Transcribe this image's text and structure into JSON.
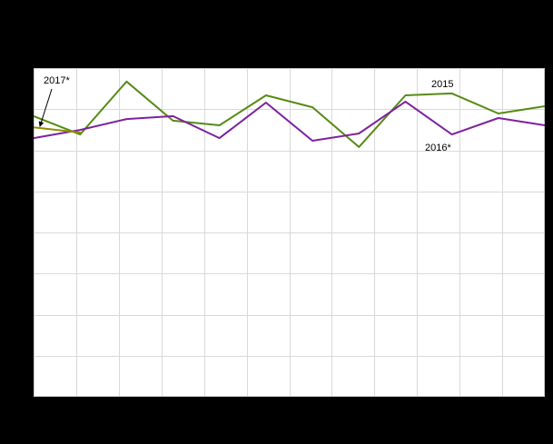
{
  "page": {
    "background_color": "#000000",
    "plot_background_color": "#ffffff"
  },
  "chart_data": {
    "type": "line",
    "x": [
      1,
      2,
      3,
      4,
      5,
      6,
      7,
      8,
      9,
      10,
      11,
      12
    ],
    "ylim": [
      0,
      100
    ],
    "grid": {
      "on": true,
      "cols": 12,
      "rows": 8,
      "color": "#d9d9d9"
    },
    "legend_position": "inline-annotations",
    "series": [
      {
        "name": "2015",
        "color": "#568b14",
        "values": [
          85.4,
          79.8,
          95.9,
          84.0,
          82.6,
          91.7,
          88.1,
          76.0,
          91.7,
          92.3,
          86.2,
          88.4
        ]
      },
      {
        "name": "2016*",
        "color": "#7d219e",
        "values": [
          78.7,
          81.2,
          84.5,
          85.4,
          78.7,
          89.5,
          77.9,
          80.1,
          89.8,
          79.8,
          84.8,
          82.6
        ]
      },
      {
        "name": "2017*",
        "color": "#8f8f00",
        "values": [
          82.0,
          80.4
        ]
      }
    ],
    "annotations": [
      {
        "text": "2017*",
        "x": 11,
        "y": 17,
        "arrow": {
          "x1": 20,
          "y1": 23,
          "x2": 7,
          "y2": 64
        }
      },
      {
        "text": "2015",
        "x": 438,
        "y": 21
      },
      {
        "text": "2016*",
        "x": 431,
        "y": 91
      }
    ]
  }
}
